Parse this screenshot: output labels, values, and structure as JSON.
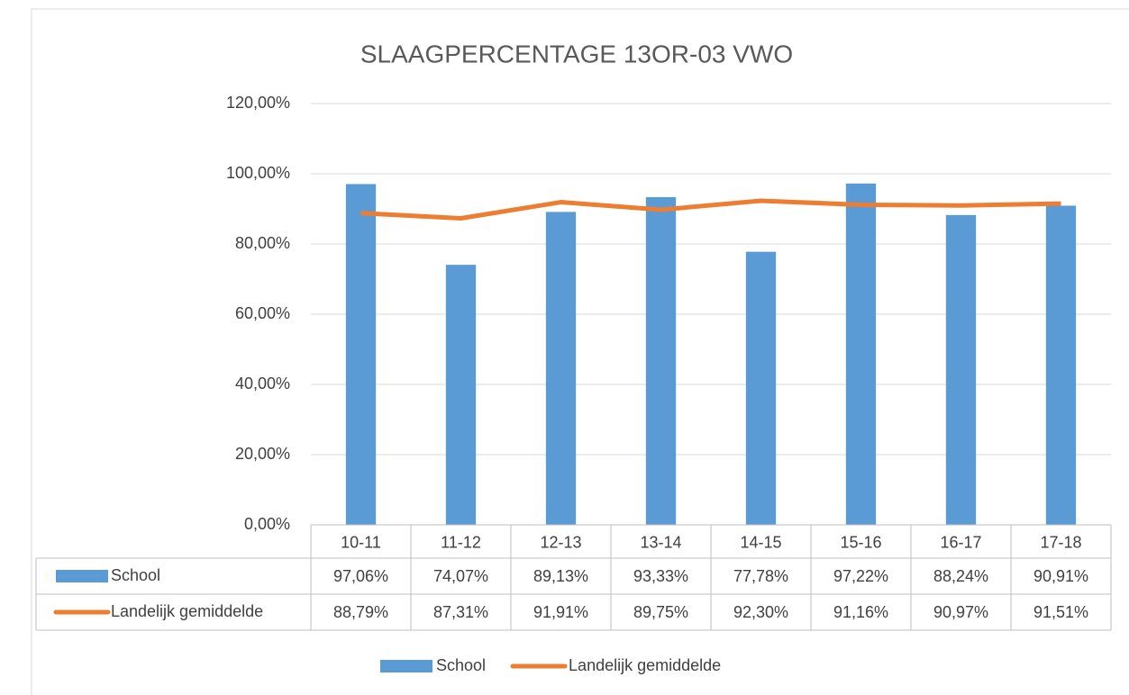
{
  "chart_data": {
    "type": "bar",
    "title": "SLAAGPERCENTAGE 13OR-03  VWO",
    "categories": [
      "10-11",
      "11-12",
      "12-13",
      "13-14",
      "14-15",
      "15-16",
      "16-17",
      "17-18"
    ],
    "series": [
      {
        "name": "School",
        "type": "bar",
        "color": "#5b9bd5",
        "values": [
          97.06,
          74.07,
          89.13,
          93.33,
          77.78,
          97.22,
          88.24,
          90.91
        ],
        "value_labels": [
          "97,06%",
          "74,07%",
          "89,13%",
          "93,33%",
          "77,78%",
          "97,22%",
          "88,24%",
          "90,91%"
        ]
      },
      {
        "name": "Landelijk gemiddelde",
        "type": "line",
        "color": "#ed7d31",
        "values": [
          88.79,
          87.31,
          91.91,
          89.75,
          92.3,
          91.16,
          90.97,
          91.51
        ],
        "value_labels": [
          "88,79%",
          "87,31%",
          "91,91%",
          "89,75%",
          "92,30%",
          "91,16%",
          "90,97%",
          "91,51%"
        ]
      }
    ],
    "ylim": [
      0,
      120
    ],
    "yticks": [
      {
        "value": 0,
        "label": "0,00%"
      },
      {
        "value": 20,
        "label": "20,00%"
      },
      {
        "value": 40,
        "label": "40,00%"
      },
      {
        "value": 60,
        "label": "60,00%"
      },
      {
        "value": 80,
        "label": "80,00%"
      },
      {
        "value": 100,
        "label": "100,00%"
      },
      {
        "value": 120,
        "label": "120,00%"
      }
    ],
    "grid": true,
    "legend": "bottom",
    "data_table": true
  }
}
